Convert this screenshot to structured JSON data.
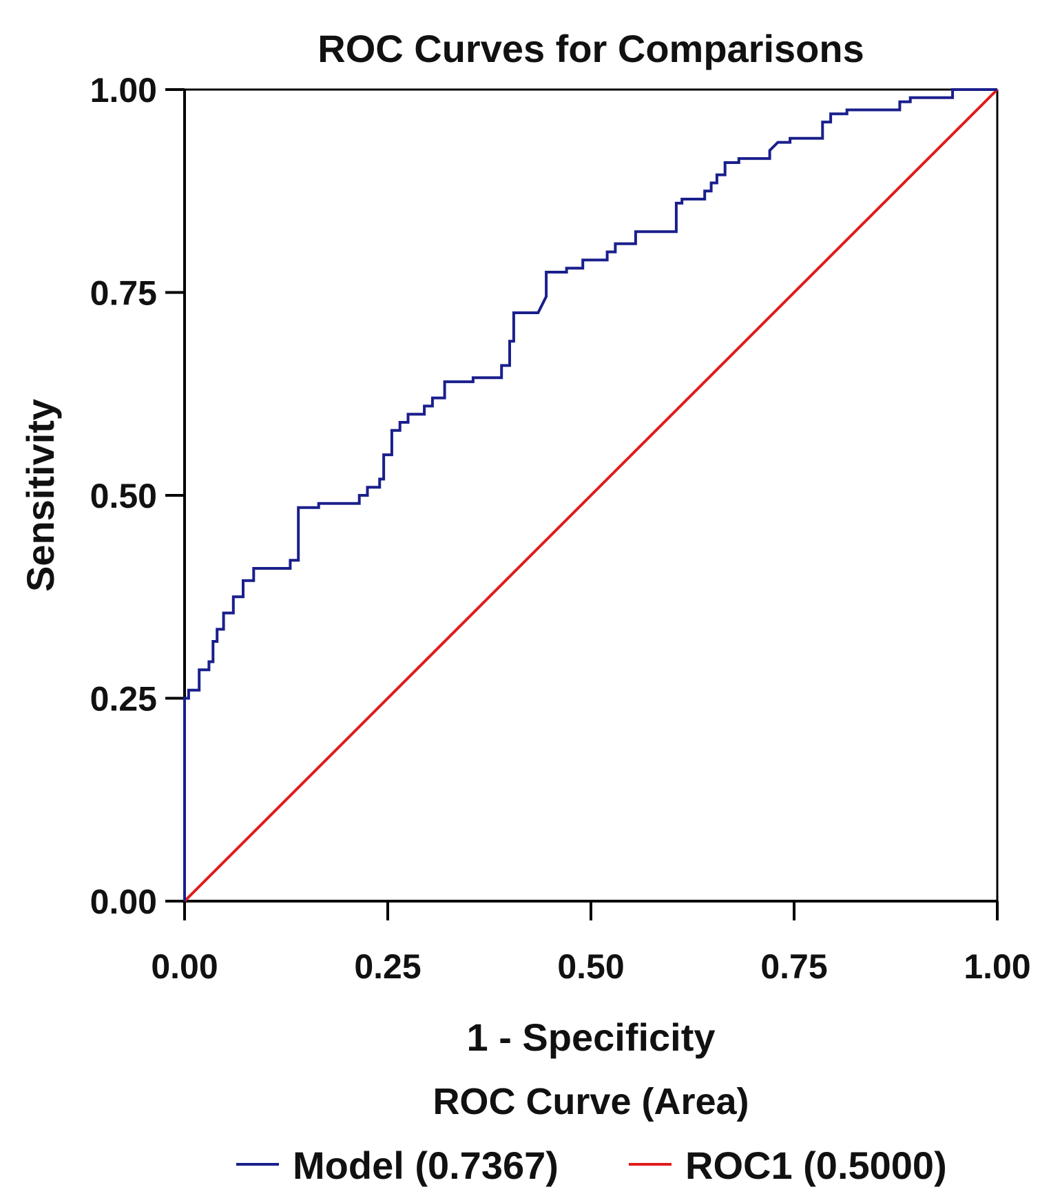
{
  "chart_data": {
    "type": "line",
    "title": "ROC Curves for Comparisons",
    "xlabel": "1 - Specificity",
    "ylabel": "Sensitivity",
    "xlim": [
      0,
      1
    ],
    "ylim": [
      0,
      1
    ],
    "x_ticks": [
      0,
      0.25,
      0.5,
      0.75,
      1
    ],
    "x_tick_labels": [
      "0.00",
      "0.25",
      "0.50",
      "0.75",
      "1.00"
    ],
    "y_ticks": [
      0,
      0.25,
      0.5,
      0.75,
      1
    ],
    "y_tick_labels": [
      "0.00",
      "0.25",
      "0.50",
      "0.75",
      "1.00"
    ],
    "grid": false,
    "legend": {
      "title": "ROC Curve (Area)",
      "position": "bottom"
    },
    "series": [
      {
        "name": "Model",
        "label": "Model (0.7367)",
        "auc": 0.7367,
        "color": "#1a1f8c",
        "x": [
          0,
          0,
          0.005,
          0.005,
          0.018,
          0.018,
          0.03,
          0.03,
          0.035,
          0.035,
          0.04,
          0.04,
          0.048,
          0.048,
          0.06,
          0.06,
          0.072,
          0.072,
          0.085,
          0.085,
          0.13,
          0.13,
          0.14,
          0.14,
          0.165,
          0.165,
          0.215,
          0.215,
          0.225,
          0.225,
          0.24,
          0.24,
          0.245,
          0.245,
          0.255,
          0.255,
          0.265,
          0.265,
          0.275,
          0.275,
          0.295,
          0.295,
          0.305,
          0.305,
          0.32,
          0.32,
          0.355,
          0.355,
          0.39,
          0.39,
          0.4,
          0.4,
          0.405,
          0.405,
          0.435,
          0.44,
          0.445,
          0.445,
          0.47,
          0.47,
          0.49,
          0.49,
          0.52,
          0.52,
          0.53,
          0.53,
          0.555,
          0.555,
          0.605,
          0.605,
          0.612,
          0.612,
          0.64,
          0.64,
          0.648,
          0.648,
          0.655,
          0.655,
          0.665,
          0.665,
          0.682,
          0.682,
          0.72,
          0.72,
          0.725,
          0.73,
          0.745,
          0.745,
          0.785,
          0.785,
          0.795,
          0.795,
          0.815,
          0.815,
          0.88,
          0.88,
          0.893,
          0.893,
          0.945,
          0.945,
          1
        ],
        "y": [
          0,
          0.25,
          0.25,
          0.26,
          0.26,
          0.285,
          0.285,
          0.295,
          0.295,
          0.32,
          0.32,
          0.335,
          0.335,
          0.355,
          0.355,
          0.375,
          0.375,
          0.395,
          0.395,
          0.41,
          0.41,
          0.42,
          0.42,
          0.485,
          0.485,
          0.49,
          0.49,
          0.5,
          0.5,
          0.51,
          0.51,
          0.52,
          0.52,
          0.55,
          0.55,
          0.58,
          0.58,
          0.59,
          0.59,
          0.6,
          0.6,
          0.61,
          0.61,
          0.62,
          0.62,
          0.64,
          0.64,
          0.645,
          0.645,
          0.66,
          0.66,
          0.69,
          0.69,
          0.725,
          0.725,
          0.735,
          0.745,
          0.775,
          0.775,
          0.78,
          0.78,
          0.79,
          0.79,
          0.8,
          0.8,
          0.81,
          0.81,
          0.825,
          0.825,
          0.86,
          0.86,
          0.865,
          0.865,
          0.875,
          0.875,
          0.885,
          0.885,
          0.895,
          0.895,
          0.91,
          0.91,
          0.915,
          0.915,
          0.925,
          0.93,
          0.935,
          0.935,
          0.94,
          0.94,
          0.96,
          0.96,
          0.97,
          0.97,
          0.975,
          0.975,
          0.985,
          0.985,
          0.99,
          0.99,
          1,
          1
        ]
      },
      {
        "name": "ROC1",
        "label": "ROC1 (0.5000)",
        "auc": 0.5,
        "color": "#e01b1b",
        "x": [
          0,
          1
        ],
        "y": [
          0,
          1
        ]
      }
    ]
  }
}
